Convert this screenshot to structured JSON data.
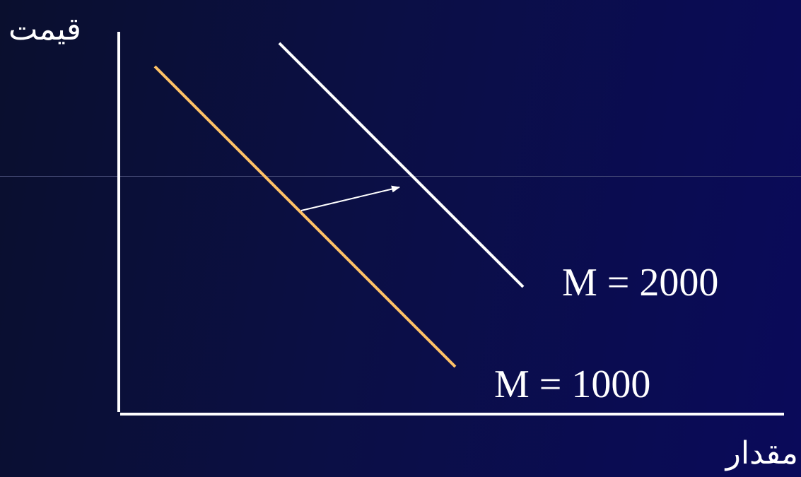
{
  "axes": {
    "y_label": "قيمت",
    "x_label": "مقدار"
  },
  "curves": {
    "original": {
      "label": "M = 1000",
      "color": "#ffc266"
    },
    "shifted": {
      "label": "M = 2000",
      "color": "#ffffff"
    }
  },
  "colors": {
    "background": "#0b0f45",
    "axis": "#ffffff",
    "arrow": "#ffffff"
  },
  "shift_arrow": "arrow-right-icon"
}
